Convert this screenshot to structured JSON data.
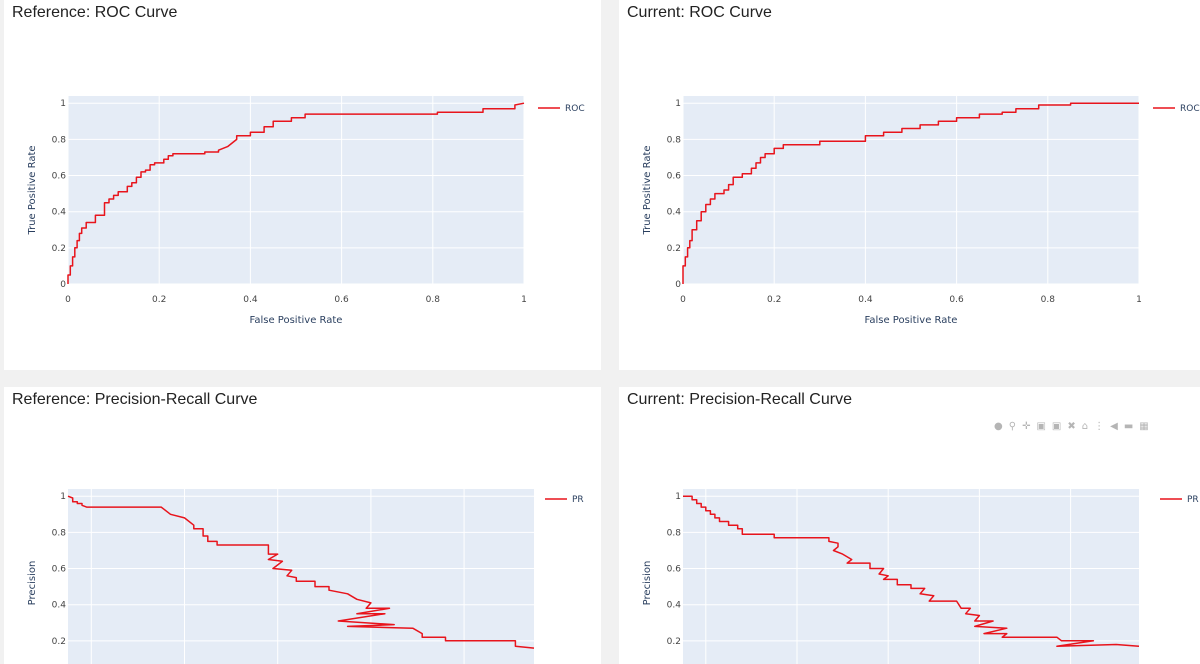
{
  "colors": {
    "plot_bg": "#e5ecf6",
    "grid": "#ffffff",
    "line": "#e8141c"
  },
  "modebar": {
    "icons": [
      "camera-icon",
      "zoom-icon",
      "pan-icon",
      "zoom-in-icon",
      "zoom-out-icon",
      "autoscale-icon",
      "home-icon",
      "spike-icon",
      "hover-closest-icon",
      "hover-compare-icon",
      "plotly-logo-icon"
    ]
  },
  "chart_data": [
    {
      "id": "ref-roc",
      "type": "line",
      "title": "Reference: ROC Curve",
      "xlabel": "False Positive Rate",
      "ylabel": "True Positive Rate",
      "xlim": [
        0,
        1
      ],
      "ylim": [
        0,
        1.04
      ],
      "xticks": [
        0,
        0.2,
        0.4,
        0.6,
        0.8,
        1
      ],
      "xtick_labels": [
        "0",
        "0.2",
        "0.4",
        "0.6",
        "0.8",
        "1"
      ],
      "yticks": [
        0,
        0.2,
        0.4,
        0.6,
        0.8,
        1
      ],
      "ytick_labels": [
        "0",
        "0.2",
        "0.4",
        "0.6",
        "0.8",
        "1"
      ],
      "legend_position": "right",
      "series": [
        {
          "name": "ROC",
          "x": [
            0,
            0,
            0.005,
            0.005,
            0.01,
            0.01,
            0.015,
            0.015,
            0.02,
            0.02,
            0.025,
            0.025,
            0.03,
            0.03,
            0.04,
            0.04,
            0.06,
            0.06,
            0.08,
            0.08,
            0.09,
            0.09,
            0.1,
            0.1,
            0.11,
            0.11,
            0.13,
            0.13,
            0.14,
            0.14,
            0.15,
            0.15,
            0.16,
            0.16,
            0.17,
            0.17,
            0.18,
            0.18,
            0.19,
            0.19,
            0.21,
            0.21,
            0.22,
            0.22,
            0.23,
            0.23,
            0.3,
            0.3,
            0.33,
            0.33,
            0.35,
            0.37,
            0.37,
            0.4,
            0.4,
            0.43,
            0.43,
            0.45,
            0.45,
            0.49,
            0.49,
            0.52,
            0.52,
            0.81,
            0.81,
            0.91,
            0.91,
            0.98,
            0.98,
            1
          ],
          "y": [
            0,
            0.05,
            0.05,
            0.1,
            0.1,
            0.15,
            0.15,
            0.2,
            0.2,
            0.24,
            0.24,
            0.28,
            0.28,
            0.31,
            0.31,
            0.34,
            0.34,
            0.38,
            0.38,
            0.45,
            0.45,
            0.47,
            0.47,
            0.49,
            0.49,
            0.51,
            0.51,
            0.54,
            0.54,
            0.56,
            0.56,
            0.59,
            0.59,
            0.62,
            0.62,
            0.63,
            0.63,
            0.66,
            0.66,
            0.67,
            0.67,
            0.69,
            0.69,
            0.71,
            0.71,
            0.72,
            0.72,
            0.73,
            0.73,
            0.74,
            0.76,
            0.8,
            0.82,
            0.82,
            0.84,
            0.84,
            0.87,
            0.87,
            0.9,
            0.9,
            0.92,
            0.92,
            0.94,
            0.94,
            0.95,
            0.95,
            0.97,
            0.97,
            0.99,
            1
          ]
        }
      ]
    },
    {
      "id": "cur-roc",
      "type": "line",
      "title": "Current: ROC Curve",
      "xlabel": "False Positive Rate",
      "ylabel": "True Positive Rate",
      "xlim": [
        0,
        1
      ],
      "ylim": [
        0,
        1.04
      ],
      "xticks": [
        0,
        0.2,
        0.4,
        0.6,
        0.8,
        1
      ],
      "xtick_labels": [
        "0",
        "0.2",
        "0.4",
        "0.6",
        "0.8",
        "1"
      ],
      "yticks": [
        0,
        0.2,
        0.4,
        0.6,
        0.8,
        1
      ],
      "ytick_labels": [
        "0",
        "0.2",
        "0.4",
        "0.6",
        "0.8",
        "1"
      ],
      "legend_position": "right",
      "series": [
        {
          "name": "ROC",
          "x": [
            0,
            0,
            0.005,
            0.005,
            0.01,
            0.01,
            0.015,
            0.015,
            0.02,
            0.02,
            0.03,
            0.03,
            0.04,
            0.04,
            0.05,
            0.05,
            0.06,
            0.06,
            0.07,
            0.07,
            0.09,
            0.09,
            0.1,
            0.1,
            0.11,
            0.11,
            0.13,
            0.13,
            0.15,
            0.15,
            0.16,
            0.16,
            0.17,
            0.17,
            0.18,
            0.18,
            0.2,
            0.2,
            0.22,
            0.22,
            0.3,
            0.3,
            0.4,
            0.4,
            0.44,
            0.44,
            0.48,
            0.48,
            0.52,
            0.52,
            0.56,
            0.56,
            0.6,
            0.6,
            0.65,
            0.65,
            0.7,
            0.7,
            0.73,
            0.73,
            0.78,
            0.78,
            0.85,
            0.85,
            1
          ],
          "y": [
            0,
            0.1,
            0.1,
            0.15,
            0.15,
            0.2,
            0.2,
            0.24,
            0.24,
            0.3,
            0.3,
            0.35,
            0.35,
            0.4,
            0.4,
            0.44,
            0.44,
            0.47,
            0.47,
            0.5,
            0.5,
            0.52,
            0.52,
            0.55,
            0.55,
            0.59,
            0.59,
            0.61,
            0.61,
            0.64,
            0.64,
            0.67,
            0.67,
            0.7,
            0.7,
            0.72,
            0.72,
            0.75,
            0.75,
            0.77,
            0.77,
            0.79,
            0.79,
            0.82,
            0.82,
            0.84,
            0.84,
            0.86,
            0.86,
            0.88,
            0.88,
            0.9,
            0.9,
            0.92,
            0.92,
            0.94,
            0.94,
            0.95,
            0.95,
            0.97,
            0.97,
            0.99,
            0.99,
            1,
            1
          ]
        }
      ]
    },
    {
      "id": "ref-pr",
      "type": "line",
      "title": "Reference: Precision-Recall Curve",
      "xlabel": "",
      "ylabel": "Precision",
      "xlim": [
        0,
        1
      ],
      "ylim": [
        0,
        1.04
      ],
      "xticks": [
        0.05,
        0.25,
        0.45,
        0.65,
        0.85
      ],
      "xtick_labels": [],
      "yticks": [
        0.2,
        0.4,
        0.6,
        0.8,
        1
      ],
      "ytick_labels": [
        "0.2",
        "0.4",
        "0.6",
        "0.8",
        "1"
      ],
      "legend_position": "right",
      "series": [
        {
          "name": "PR",
          "x": [
            0,
            0.01,
            0.01,
            0.02,
            0.02,
            0.03,
            0.03,
            0.04,
            0.2,
            0.22,
            0.25,
            0.27,
            0.27,
            0.29,
            0.29,
            0.3,
            0.3,
            0.32,
            0.32,
            0.43,
            0.43,
            0.45,
            0.43,
            0.46,
            0.44,
            0.48,
            0.47,
            0.49,
            0.49,
            0.53,
            0.53,
            0.56,
            0.56,
            0.6,
            0.62,
            0.65,
            0.64,
            0.69,
            0.62,
            0.68,
            0.58,
            0.7,
            0.6,
            0.74,
            0.76,
            0.76,
            0.81,
            0.81,
            0.96,
            0.96,
            1
          ],
          "y": [
            1,
            0.99,
            0.97,
            0.97,
            0.96,
            0.96,
            0.95,
            0.94,
            0.94,
            0.9,
            0.88,
            0.84,
            0.82,
            0.82,
            0.78,
            0.78,
            0.75,
            0.75,
            0.73,
            0.73,
            0.68,
            0.68,
            0.65,
            0.64,
            0.6,
            0.59,
            0.56,
            0.55,
            0.53,
            0.53,
            0.5,
            0.5,
            0.48,
            0.46,
            0.43,
            0.41,
            0.38,
            0.38,
            0.35,
            0.35,
            0.31,
            0.29,
            0.28,
            0.27,
            0.24,
            0.22,
            0.22,
            0.2,
            0.2,
            0.17,
            0.16
          ]
        }
      ]
    },
    {
      "id": "cur-pr",
      "type": "line",
      "title": "Current: Precision-Recall Curve",
      "xlabel": "",
      "ylabel": "Precision",
      "xlim": [
        0,
        1
      ],
      "ylim": [
        0,
        1.04
      ],
      "xticks": [
        0.05,
        0.25,
        0.45,
        0.65,
        0.85
      ],
      "xtick_labels": [],
      "yticks": [
        0.2,
        0.4,
        0.6,
        0.8,
        1
      ],
      "ytick_labels": [
        "0.2",
        "0.4",
        "0.6",
        "0.8",
        "1"
      ],
      "legend_position": "right",
      "series": [
        {
          "name": "PR",
          "x": [
            0,
            0.02,
            0.02,
            0.03,
            0.03,
            0.04,
            0.04,
            0.05,
            0.05,
            0.06,
            0.06,
            0.07,
            0.07,
            0.08,
            0.08,
            0.1,
            0.1,
            0.12,
            0.12,
            0.13,
            0.13,
            0.2,
            0.2,
            0.32,
            0.32,
            0.34,
            0.34,
            0.33,
            0.35,
            0.37,
            0.36,
            0.41,
            0.41,
            0.44,
            0.43,
            0.45,
            0.44,
            0.47,
            0.47,
            0.5,
            0.5,
            0.53,
            0.52,
            0.55,
            0.54,
            0.6,
            0.61,
            0.63,
            0.62,
            0.65,
            0.64,
            0.68,
            0.64,
            0.71,
            0.66,
            0.71,
            0.7,
            0.82,
            0.83,
            0.9,
            0.82,
            0.95,
            1
          ],
          "y": [
            1,
            1,
            0.98,
            0.98,
            0.96,
            0.96,
            0.94,
            0.94,
            0.92,
            0.92,
            0.9,
            0.9,
            0.88,
            0.88,
            0.86,
            0.86,
            0.84,
            0.84,
            0.82,
            0.82,
            0.79,
            0.79,
            0.77,
            0.77,
            0.75,
            0.74,
            0.72,
            0.7,
            0.68,
            0.65,
            0.63,
            0.63,
            0.6,
            0.6,
            0.57,
            0.56,
            0.54,
            0.54,
            0.51,
            0.51,
            0.49,
            0.49,
            0.46,
            0.45,
            0.42,
            0.42,
            0.38,
            0.38,
            0.35,
            0.34,
            0.31,
            0.31,
            0.28,
            0.27,
            0.24,
            0.24,
            0.22,
            0.22,
            0.2,
            0.2,
            0.17,
            0.18,
            0.17
          ]
        }
      ]
    }
  ]
}
